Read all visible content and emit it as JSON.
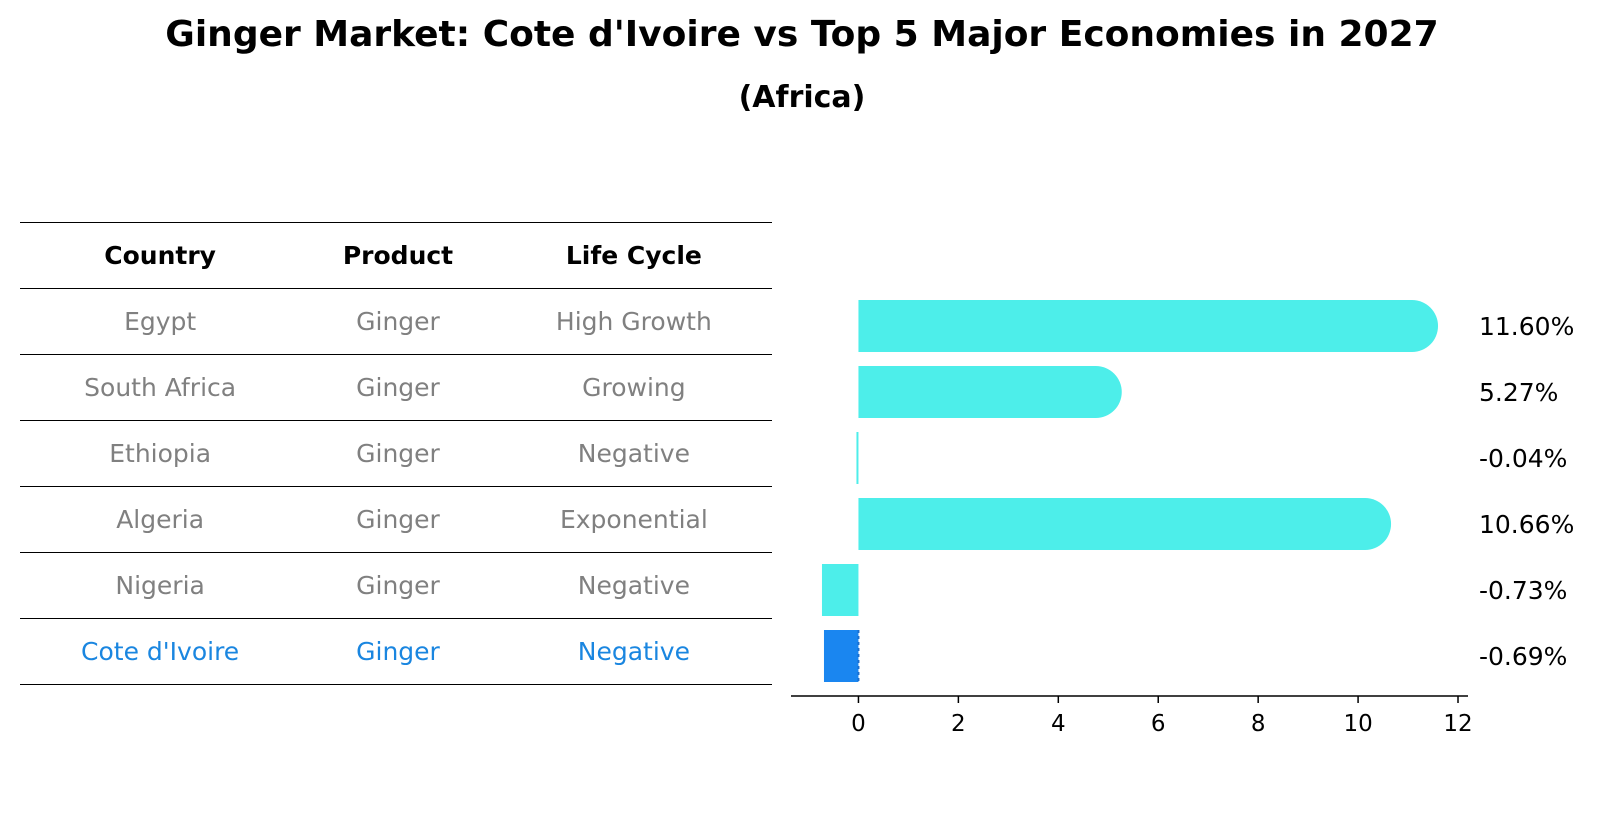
{
  "title": "Ginger Market: Cote d'Ivoire vs Top 5 Major Economies in 2027",
  "subtitle": "(Africa)",
  "table": {
    "headers": [
      "Country",
      "Product",
      "Life Cycle"
    ],
    "rows": [
      {
        "country": "Egypt",
        "product": "Ginger",
        "life_cycle": "High Growth"
      },
      {
        "country": "South Africa",
        "product": "Ginger",
        "life_cycle": "Growing"
      },
      {
        "country": "Ethiopia",
        "product": "Ginger",
        "life_cycle": "Negative"
      },
      {
        "country": "Algeria",
        "product": "Ginger",
        "life_cycle": "Exponential"
      },
      {
        "country": "Nigeria",
        "product": "Ginger",
        "life_cycle": "Negative"
      },
      {
        "country": "Cote d'Ivoire",
        "product": "Ginger",
        "life_cycle": "Negative"
      }
    ]
  },
  "chart_data": {
    "type": "bar",
    "orientation": "horizontal",
    "categories": [
      "Egypt",
      "South Africa",
      "Ethiopia",
      "Algeria",
      "Nigeria",
      "Cote d'Ivoire"
    ],
    "values": [
      11.6,
      5.27,
      -0.04,
      10.66,
      -0.73,
      -0.69
    ],
    "value_labels": [
      "11.60%",
      "5.27%",
      "-0.04%",
      "10.66%",
      "-0.73%",
      "-0.69%"
    ],
    "xlim": [
      -1.35,
      12.2
    ],
    "xticks": [
      0,
      2,
      4,
      6,
      8,
      10,
      12
    ],
    "highlight": "Cote d'Ivoire",
    "colors": {
      "default": "#4deeea",
      "highlight": "#1a86f0",
      "highlight_text": "#1a86e0",
      "muted_text": "#808080"
    }
  }
}
